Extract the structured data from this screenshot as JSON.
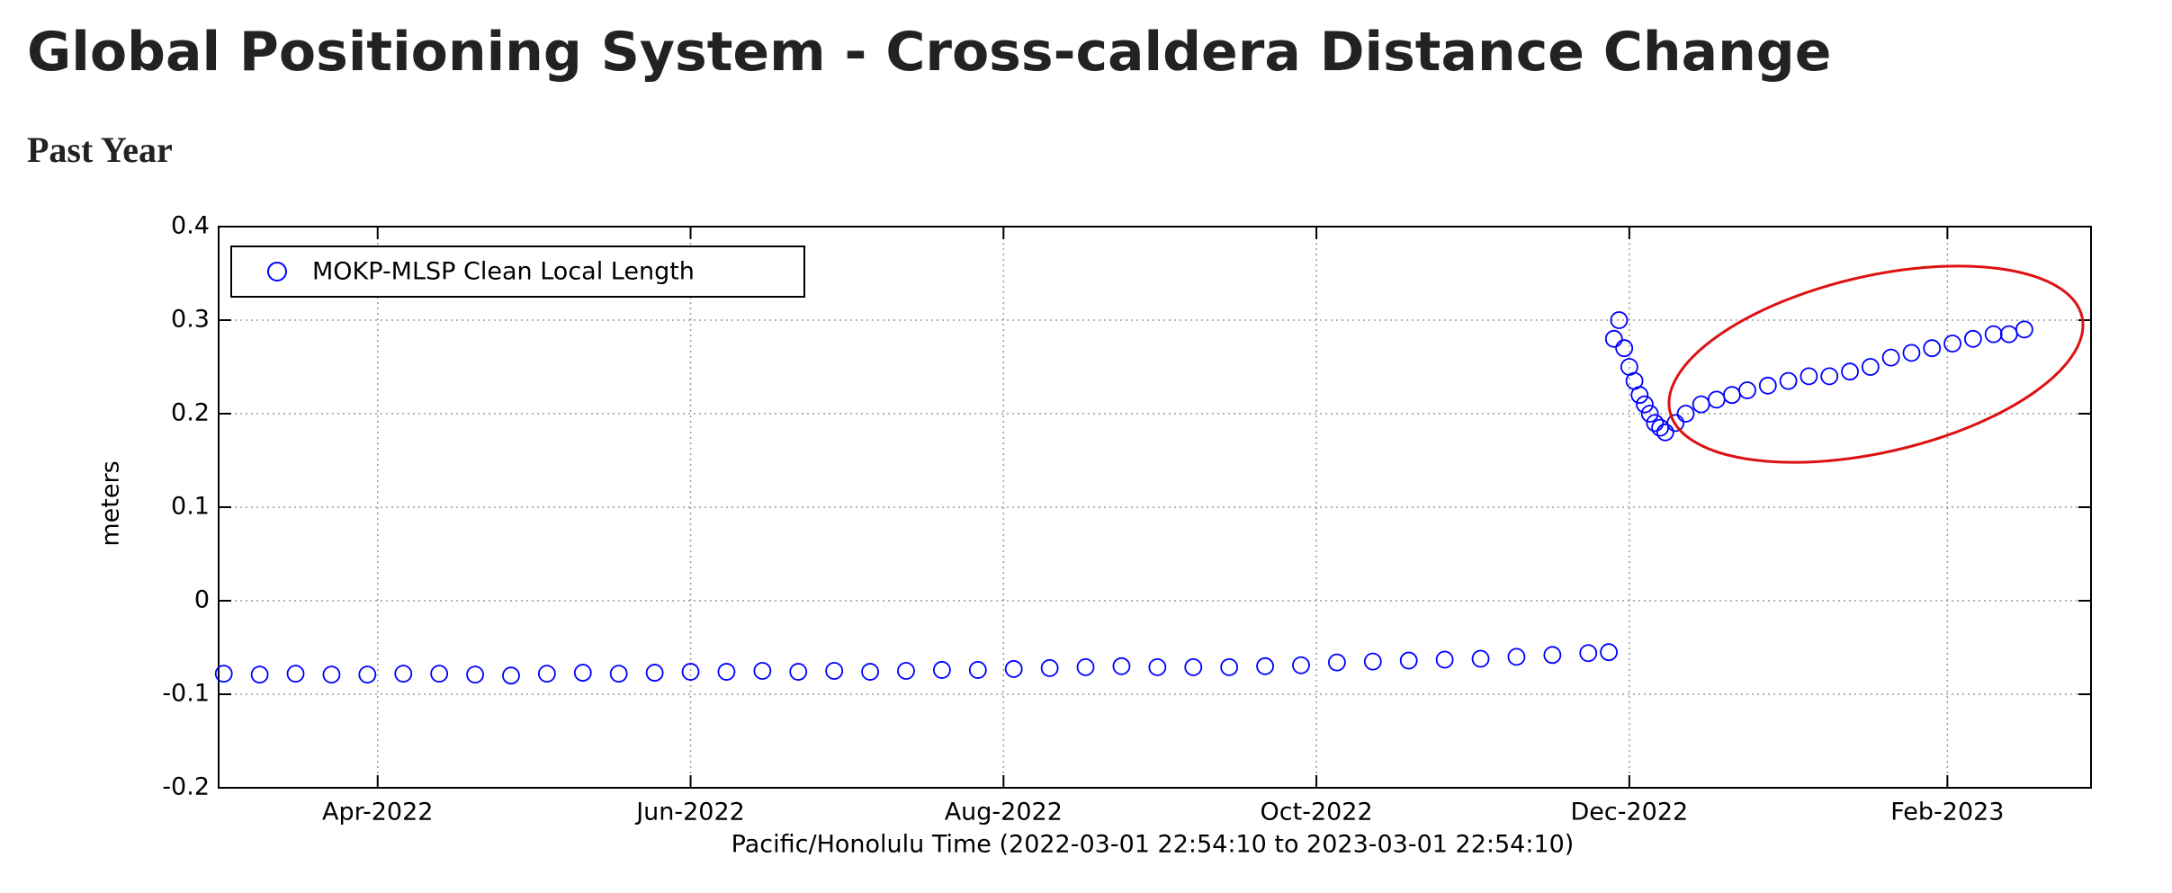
{
  "chart_data": {
    "type": "scatter",
    "title": "Global Positioning System - Cross-caldera Distance Change",
    "subtitle": "Past Year",
    "x_label": "Pacific/Honolulu Time (2022-03-01 22:54:10 to 2023-03-01 22:54:10)",
    "y_label": "meters",
    "xlim": [
      "2022-03-01",
      "2023-03-01"
    ],
    "xticks": [
      {
        "value": "2022-04-01",
        "label": "Apr-2022"
      },
      {
        "value": "2022-06-01",
        "label": "Jun-2022"
      },
      {
        "value": "2022-08-01",
        "label": "Aug-2022"
      },
      {
        "value": "2022-10-01",
        "label": "Oct-2022"
      },
      {
        "value": "2022-12-01",
        "label": "Dec-2022"
      },
      {
        "value": "2023-02-01",
        "label": "Feb-2023"
      }
    ],
    "ylim": [
      -0.2,
      0.4
    ],
    "yticks": [
      -0.2,
      -0.1,
      0,
      0.1,
      0.2,
      0.3,
      0.4
    ],
    "grid": true,
    "legend": "upper left",
    "series": [
      {
        "name": "MOKP-MLSP Clean Local Length",
        "color": "#0000ff",
        "x": [
          "2022-03-02",
          "2022-03-09",
          "2022-03-16",
          "2022-03-23",
          "2022-03-30",
          "2022-04-06",
          "2022-04-13",
          "2022-04-20",
          "2022-04-27",
          "2022-05-04",
          "2022-05-11",
          "2022-05-18",
          "2022-05-25",
          "2022-06-01",
          "2022-06-08",
          "2022-06-15",
          "2022-06-22",
          "2022-06-29",
          "2022-07-06",
          "2022-07-13",
          "2022-07-20",
          "2022-07-27",
          "2022-08-03",
          "2022-08-10",
          "2022-08-17",
          "2022-08-24",
          "2022-08-31",
          "2022-09-07",
          "2022-09-14",
          "2022-09-21",
          "2022-09-28",
          "2022-10-05",
          "2022-10-12",
          "2022-10-19",
          "2022-10-26",
          "2022-11-02",
          "2022-11-09",
          "2022-11-16",
          "2022-11-23",
          "2022-11-27",
          "2022-11-28",
          "2022-11-29",
          "2022-11-30",
          "2022-12-01",
          "2022-12-02",
          "2022-12-03",
          "2022-12-04",
          "2022-12-05",
          "2022-12-06",
          "2022-12-07",
          "2022-12-08",
          "2022-12-10",
          "2022-12-12",
          "2022-12-15",
          "2022-12-18",
          "2022-12-21",
          "2022-12-24",
          "2022-12-28",
          "2023-01-01",
          "2023-01-05",
          "2023-01-09",
          "2023-01-13",
          "2023-01-17",
          "2023-01-21",
          "2023-01-25",
          "2023-01-29",
          "2023-02-02",
          "2023-02-06",
          "2023-02-10",
          "2023-02-13",
          "2023-02-16"
        ],
        "values": [
          -0.078,
          -0.079,
          -0.078,
          -0.079,
          -0.079,
          -0.078,
          -0.078,
          -0.079,
          -0.08,
          -0.078,
          -0.077,
          -0.078,
          -0.077,
          -0.076,
          -0.076,
          -0.075,
          -0.076,
          -0.075,
          -0.076,
          -0.075,
          -0.074,
          -0.074,
          -0.073,
          -0.072,
          -0.071,
          -0.07,
          -0.071,
          -0.071,
          -0.071,
          -0.07,
          -0.069,
          -0.066,
          -0.065,
          -0.064,
          -0.063,
          -0.062,
          -0.06,
          -0.058,
          -0.056,
          -0.055,
          0.28,
          0.3,
          0.27,
          0.25,
          0.235,
          0.22,
          0.21,
          0.2,
          0.19,
          0.185,
          0.18,
          0.19,
          0.2,
          0.21,
          0.215,
          0.22,
          0.225,
          0.23,
          0.235,
          0.24,
          0.24,
          0.245,
          0.25,
          0.26,
          0.265,
          0.27,
          0.275,
          0.28,
          0.285,
          0.285,
          0.29
        ]
      }
    ]
  }
}
